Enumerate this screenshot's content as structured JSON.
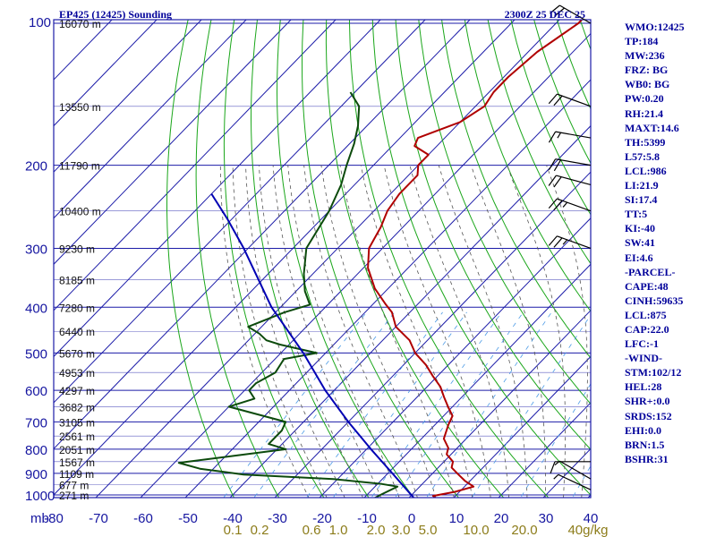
{
  "header": {
    "station": "EP425 (12425) Sounding",
    "time": "2300Z 25 DEC 25"
  },
  "stats": [
    "WMO:12425",
    "TP:184",
    "MW:236",
    "FRZ: BG",
    "WB0: BG",
    "PW:0.20",
    "RH:21.4",
    "MAXT:14.6",
    "TH:5399",
    "L57:5.8",
    "LCL:986",
    "LI:21.9",
    "SI:17.4",
    "TT:5",
    "KI:-40",
    "SW:41",
    "EI:4.6",
    "-PARCEL-",
    "CAPE:48",
    "CINH:59635",
    "LCL:875",
    "CAP:22.0",
    "LFC:-1",
    "-WIND-",
    "STM:102/12",
    "HEL:28",
    "SHR+:0.0",
    "SRDS:152",
    "EHI:0.0",
    "BRN:1.5",
    "BSHR:31"
  ],
  "colors": {
    "frame": "#1b1ba8",
    "axis_text": "#1515a0",
    "isotherm": "#1b1ba8",
    "dry_adiabat": "#1aa61a",
    "moist_adiabat": "#555555",
    "mixing_ratio": "#4a9ae6",
    "temperature": "#b00000",
    "dewpoint": "#0c4a0c",
    "parcel": "#0000b4",
    "mixing_label": "#8c7c1a",
    "text": "#00009a",
    "wind": "#000000"
  },
  "chart_data": {
    "type": "line",
    "title": "EP425 (12425) Sounding",
    "xlabel": "",
    "ylabel": "mb",
    "pressure_ticks": [
      "100",
      "200",
      "300",
      "400",
      "500",
      "600",
      "700",
      "800",
      "900",
      "1000"
    ],
    "pressure_values": [
      100,
      200,
      300,
      400,
      500,
      600,
      700,
      800,
      900,
      1000
    ],
    "height_labels": [
      {
        "p": 100,
        "text": "16070 m"
      },
      {
        "p": 150,
        "text": "13550 m"
      },
      {
        "p": 200,
        "text": "11790 m"
      },
      {
        "p": 250,
        "text": "10400 m"
      },
      {
        "p": 300,
        "text": "9230 m"
      },
      {
        "p": 350,
        "text": "8185 m"
      },
      {
        "p": 400,
        "text": "7280 m"
      },
      {
        "p": 450,
        "text": "6440 m"
      },
      {
        "p": 500,
        "text": "5670 m"
      },
      {
        "p": 550,
        "text": "4953 m"
      },
      {
        "p": 600,
        "text": "4297 m"
      },
      {
        "p": 650,
        "text": "3682 m"
      },
      {
        "p": 700,
        "text": "3105 m"
      },
      {
        "p": 750,
        "text": "2561 m"
      },
      {
        "p": 800,
        "text": "2051 m"
      },
      {
        "p": 850,
        "text": "1567 m"
      },
      {
        "p": 900,
        "text": "1109 m"
      },
      {
        "p": 950,
        "text": "677 m"
      },
      {
        "p": 1000,
        "text": "271 m"
      }
    ],
    "temperature_ticks": [
      "-80",
      "-70",
      "-60",
      "-50",
      "-40",
      "-30",
      "-20",
      "-10",
      "0",
      "10",
      "20",
      "30",
      "40"
    ],
    "xlim": [
      -80,
      40
    ],
    "mixing_ratio_labels": [
      "0.1",
      "0.2",
      "0.6",
      "1.0",
      "2.0",
      "3.0",
      "5.0",
      "10.0",
      "20.0",
      "40g/kg"
    ],
    "series": [
      {
        "key": "temperature",
        "points": [
          [
            1025,
            7
          ],
          [
            1005,
            5
          ],
          [
            985,
            9
          ],
          [
            960,
            12
          ],
          [
            935,
            9
          ],
          [
            905,
            6
          ],
          [
            875,
            3
          ],
          [
            850,
            2
          ],
          [
            820,
            -1
          ],
          [
            795,
            -2
          ],
          [
            760,
            -5
          ],
          [
            710,
            -7
          ],
          [
            680,
            -8
          ],
          [
            650,
            -11
          ],
          [
            620,
            -14
          ],
          [
            590,
            -17
          ],
          [
            560,
            -21
          ],
          [
            530,
            -25
          ],
          [
            500,
            -30
          ],
          [
            470,
            -34
          ],
          [
            440,
            -40
          ],
          [
            410,
            -44
          ],
          [
            395,
            -47
          ],
          [
            365,
            -53
          ],
          [
            330,
            -59
          ],
          [
            300,
            -63
          ],
          [
            270,
            -65
          ],
          [
            250,
            -67
          ],
          [
            230,
            -68
          ],
          [
            210,
            -68
          ],
          [
            200,
            -70
          ],
          [
            190,
            -70
          ],
          [
            182,
            -75
          ],
          [
            175,
            -76
          ],
          [
            162,
            -70
          ],
          [
            150,
            -68
          ],
          [
            140,
            -69
          ],
          [
            130,
            -69
          ],
          [
            115,
            -68
          ],
          [
            100,
            -65
          ],
          [
            93,
            -65
          ]
        ]
      },
      {
        "key": "dewpoint",
        "points": [
          [
            1025,
            -8
          ],
          [
            1000,
            -7
          ],
          [
            960,
            -5
          ],
          [
            948,
            -9
          ],
          [
            925,
            -21
          ],
          [
            905,
            -42
          ],
          [
            880,
            -53
          ],
          [
            855,
            -59
          ],
          [
            800,
            -38
          ],
          [
            780,
            -43
          ],
          [
            730,
            -43
          ],
          [
            700,
            -44
          ],
          [
            650,
            -60
          ],
          [
            625,
            -56
          ],
          [
            600,
            -59
          ],
          [
            580,
            -59
          ],
          [
            550,
            -57
          ],
          [
            515,
            -58
          ],
          [
            500,
            -52
          ],
          [
            480,
            -62
          ],
          [
            470,
            -66
          ],
          [
            455,
            -69
          ],
          [
            440,
            -73
          ],
          [
            410,
            -68
          ],
          [
            395,
            -64
          ],
          [
            370,
            -68
          ],
          [
            340,
            -72
          ],
          [
            300,
            -77
          ],
          [
            250,
            -80
          ],
          [
            220,
            -83
          ],
          [
            200,
            -86
          ],
          [
            180,
            -89
          ],
          [
            165,
            -92
          ],
          [
            150,
            -96
          ],
          [
            140,
            -101
          ]
        ]
      },
      {
        "key": "parcel",
        "points": [
          [
            1025,
            2
          ],
          [
            900,
            -9
          ],
          [
            800,
            -19
          ],
          [
            700,
            -30
          ],
          [
            600,
            -42
          ],
          [
            500,
            -55
          ],
          [
            400,
            -72
          ],
          [
            300,
            -91
          ],
          [
            260,
            -101
          ],
          [
            230,
            -110
          ]
        ]
      }
    ],
    "wind_barbs": [
      {
        "p": 100,
        "dir": 300,
        "speed": 20
      },
      {
        "p": 150,
        "dir": 290,
        "speed": 20
      },
      {
        "p": 175,
        "dir": 280,
        "speed": 15
      },
      {
        "p": 200,
        "dir": 280,
        "speed": 20
      },
      {
        "p": 220,
        "dir": 285,
        "speed": 20
      },
      {
        "p": 250,
        "dir": 290,
        "speed": 25
      },
      {
        "p": 300,
        "dir": 290,
        "speed": 25
      },
      {
        "p": 850,
        "dir": 270,
        "speed": 10
      },
      {
        "p": 925,
        "dir": 300,
        "speed": 5
      },
      {
        "p": 975,
        "dir": 295,
        "speed": 5
      }
    ],
    "grid": true,
    "legend": "none"
  }
}
